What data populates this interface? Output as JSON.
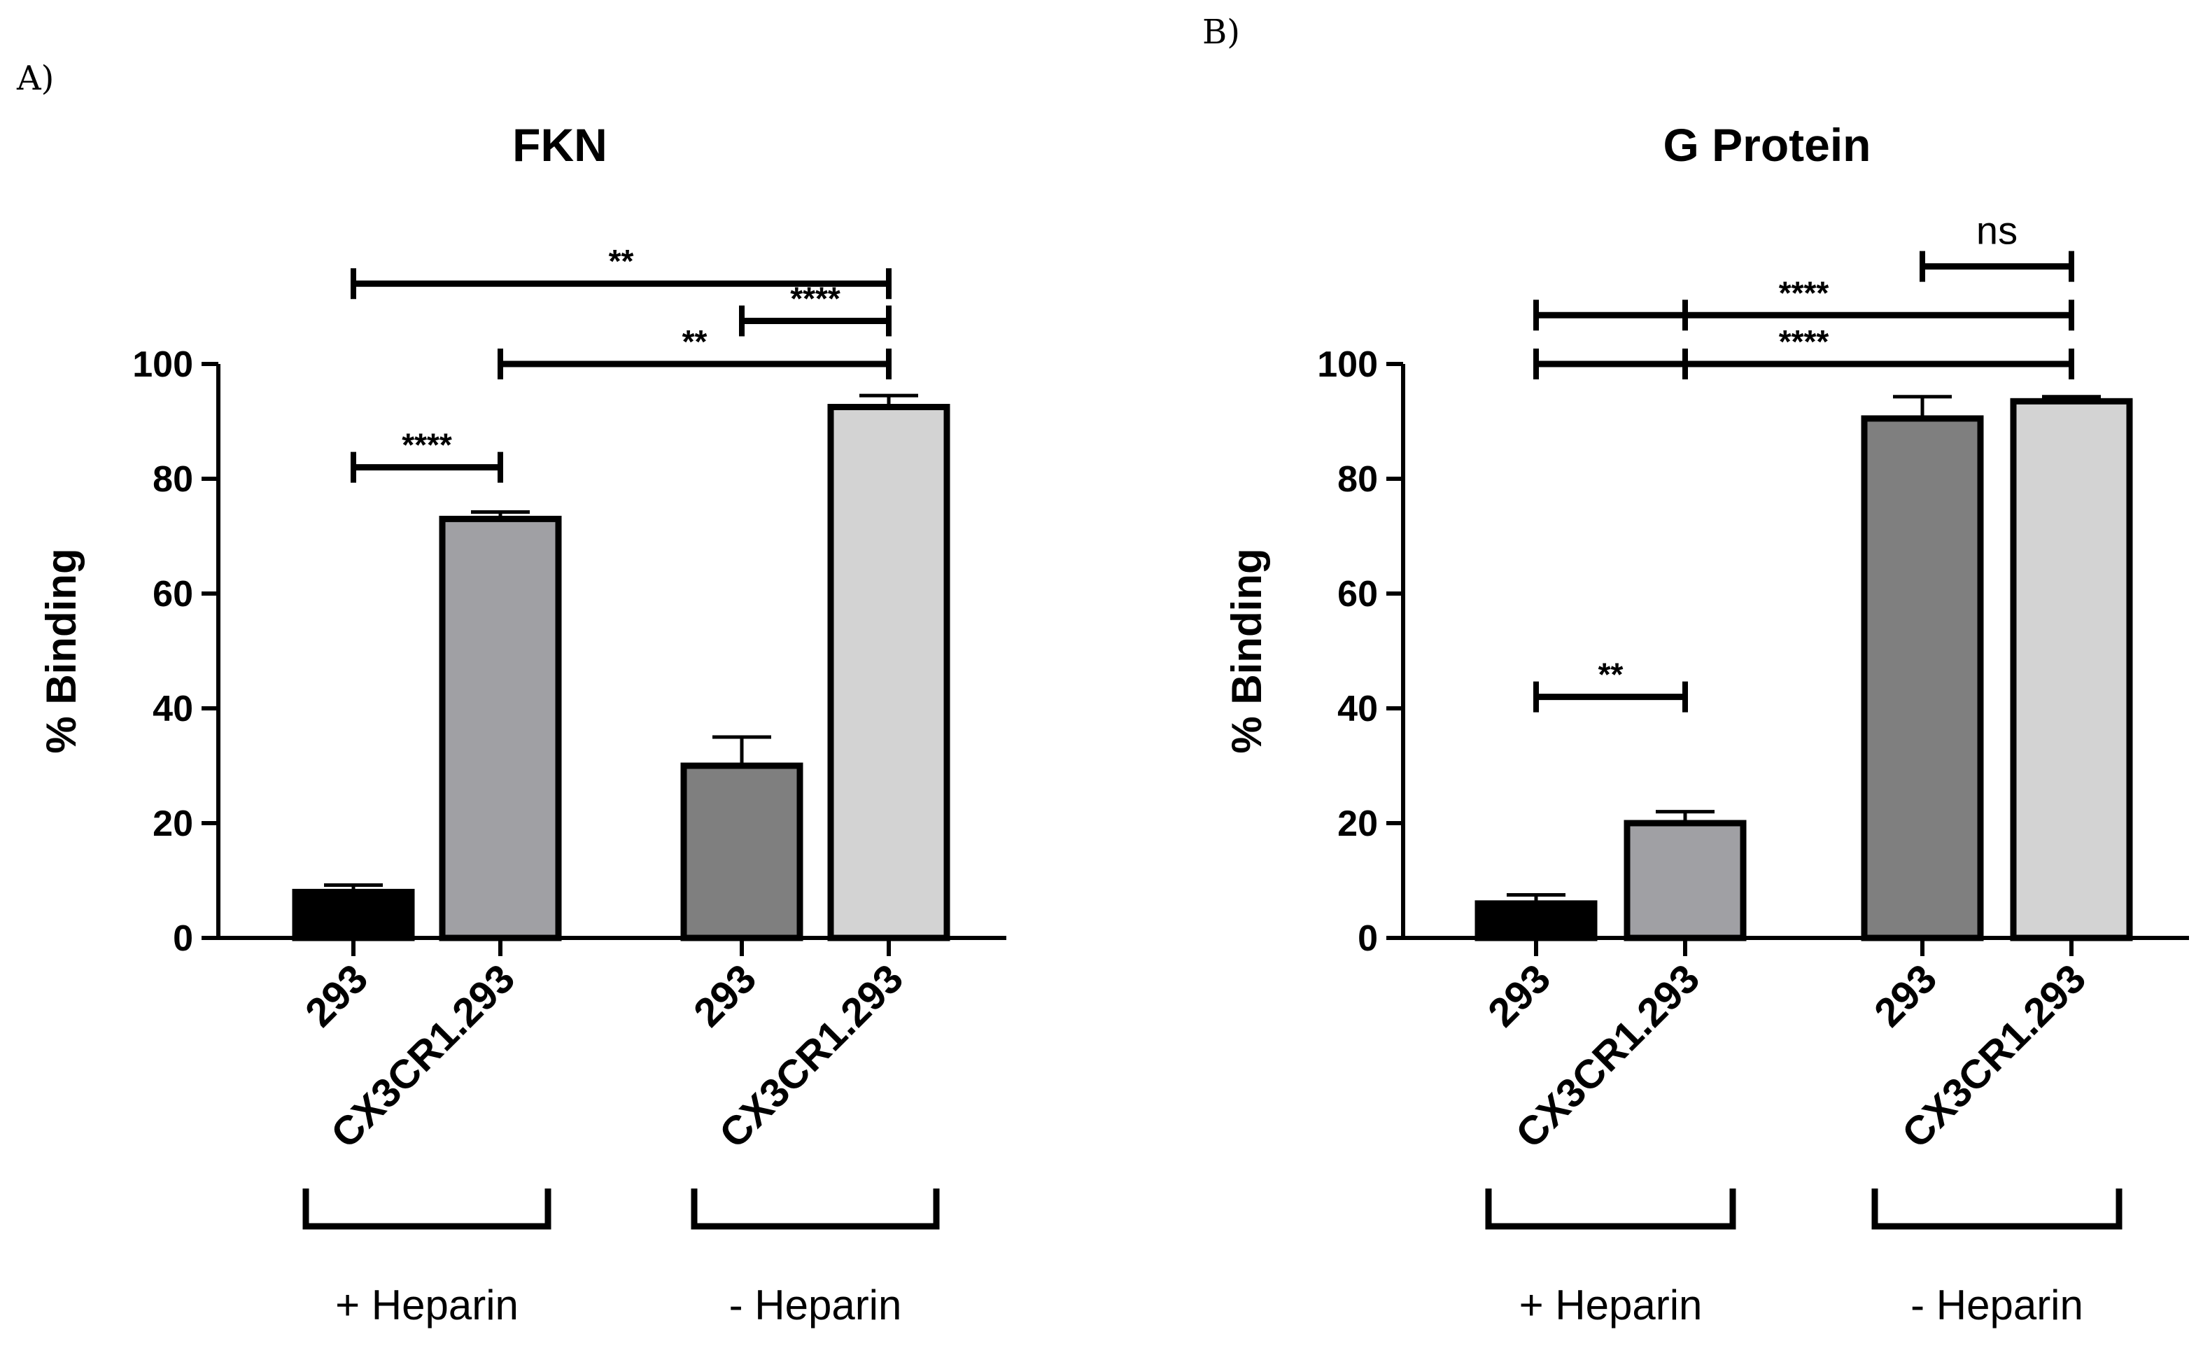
{
  "chart_data": [
    {
      "panel_label": "A)",
      "type": "bar",
      "title": "FKN",
      "ylabel": "% Binding",
      "xlabel": "",
      "ylim": [
        0,
        100
      ],
      "yticks": [
        0,
        20,
        40,
        60,
        80,
        100
      ],
      "categories": [
        "293",
        "CX3CR1.293",
        "293",
        "CX3CR1.293"
      ],
      "values": [
        8,
        73,
        30,
        92.5
      ],
      "errors": [
        1.2,
        1.2,
        5,
        2
      ],
      "bar_colors": [
        "#000000",
        "#a0a0a4",
        "#7f7f7f",
        "#d3d3d3"
      ],
      "groups": [
        {
          "label": "+ Heparin",
          "from": 0,
          "to": 1
        },
        {
          "label": "- Heparin",
          "from": 2,
          "to": 3
        }
      ],
      "comparisons": [
        {
          "from": 0,
          "to": 1,
          "label": "****",
          "level": 82
        },
        {
          "from": 1,
          "to": 3,
          "label": "**",
          "level": 100
        },
        {
          "from": 2,
          "to": 3,
          "label": "****",
          "level": 107.5
        },
        {
          "from": 0,
          "to": 3,
          "label": "**",
          "level": 114
        }
      ]
    },
    {
      "panel_label": "B)",
      "type": "bar",
      "title": "G Protein",
      "ylabel": "% Binding",
      "xlabel": "",
      "ylim": [
        0,
        100
      ],
      "yticks": [
        0,
        20,
        40,
        60,
        80,
        100
      ],
      "categories": [
        "293",
        "CX3CR1.293",
        "293",
        "CX3CR1.293"
      ],
      "values": [
        6,
        20,
        90.5,
        93.5
      ],
      "errors": [
        1.5,
        2,
        3.8,
        0.8
      ],
      "bar_colors": [
        "#000000",
        "#a0a0a4",
        "#7f7f7f",
        "#d3d3d3"
      ],
      "groups": [
        {
          "label": "+ Heparin",
          "from": 0,
          "to": 1
        },
        {
          "label": "- Heparin",
          "from": 2,
          "to": 3
        }
      ],
      "comparisons": [
        {
          "from": 0,
          "to": 1,
          "label": "**",
          "level": 42
        },
        {
          "from": 0,
          "to": 3,
          "label": "****",
          "level": 100,
          "mid": 1
        },
        {
          "from": 0,
          "to": 3,
          "label": "****",
          "level": 108.5,
          "mid": 1
        },
        {
          "from": 2,
          "to": 3,
          "label": "ns",
          "level": 117
        }
      ]
    }
  ]
}
